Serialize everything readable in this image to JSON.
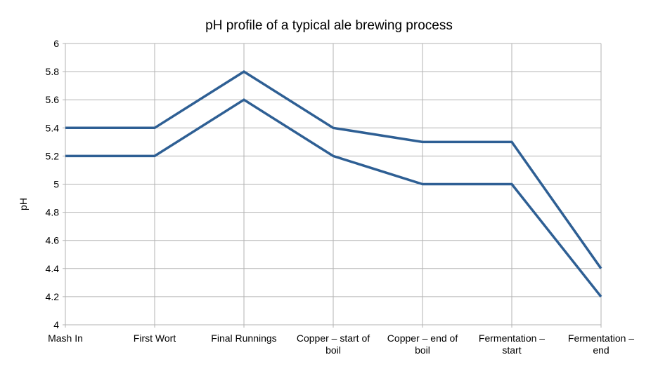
{
  "chart_data": {
    "type": "line",
    "title": "pH profile of a typical ale brewing process",
    "xlabel": "",
    "ylabel": "pH",
    "categories": [
      [
        "Mash In"
      ],
      [
        "First Wort"
      ],
      [
        "Final Runnings"
      ],
      [
        "Copper – start of",
        "boil"
      ],
      [
        "Copper – end of",
        "boil"
      ],
      [
        "Fermentation –",
        "start"
      ],
      [
        "Fermentation –",
        "end"
      ]
    ],
    "ylim": [
      4,
      6
    ],
    "yticks": [
      "4",
      "4.2",
      "4.4",
      "4.6",
      "4.8",
      "5",
      "5.2",
      "5.4",
      "5.6",
      "5.8",
      "6"
    ],
    "grid": true,
    "legend": "none",
    "series": [
      {
        "values": [
          5.4,
          5.4,
          5.8,
          5.4,
          5.3,
          5.3,
          4.4
        ]
      },
      {
        "values": [
          5.2,
          5.2,
          5.6,
          5.2,
          5.0,
          5.0,
          4.2
        ]
      }
    ],
    "line_color": "#2e5f94",
    "grid_color": "#b3b3b3"
  }
}
